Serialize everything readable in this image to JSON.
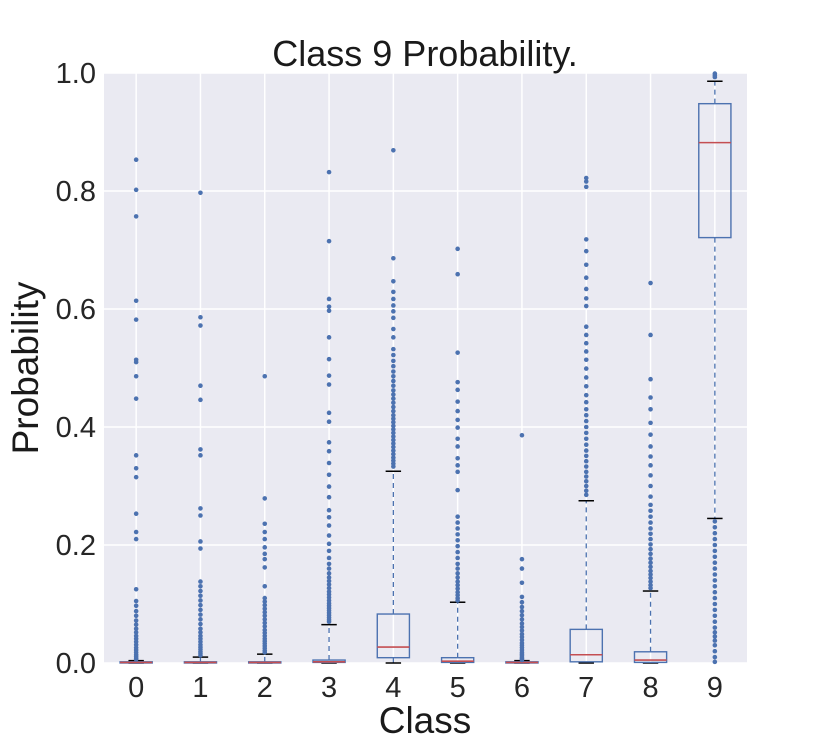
{
  "chart_data": {
    "type": "box",
    "title": "Class 9 Probability.",
    "xlabel": "Class",
    "ylabel": "Probability",
    "ylim": [
      0.0,
      1.0
    ],
    "yticks": [
      "0.0",
      "0.2",
      "0.4",
      "0.6",
      "0.8",
      "1.0"
    ],
    "categories": [
      "0",
      "1",
      "2",
      "3",
      "4",
      "5",
      "6",
      "7",
      "8",
      "9"
    ],
    "grid": true,
    "colors": {
      "background": "#eaeaf2",
      "grid": "#ffffff",
      "box": "#4c72b0",
      "median": "#c44e52",
      "whisker_cap": "#000000",
      "flier": "#4c72b0"
    },
    "boxes": [
      {
        "category": "0",
        "q1": 0.0,
        "median": 0.001,
        "q3": 0.002,
        "whisker_low": 0.0,
        "whisker_high": 0.004,
        "fliers": [
          0.853,
          0.802,
          0.757,
          0.614,
          0.582,
          0.514,
          0.51,
          0.486,
          0.448,
          0.352,
          0.33,
          0.315,
          0.253,
          0.222,
          0.21,
          0.125,
          0.105,
          0.097,
          0.088,
          0.08,
          0.072,
          0.065,
          0.058,
          0.052,
          0.046,
          0.041,
          0.036,
          0.031,
          0.026,
          0.022,
          0.018,
          0.014,
          0.011,
          0.008,
          0.006
        ]
      },
      {
        "category": "1",
        "q1": 0.0,
        "median": 0.001,
        "q3": 0.002,
        "whisker_low": 0.0,
        "whisker_high": 0.01,
        "fliers": [
          0.797,
          0.586,
          0.572,
          0.47,
          0.446,
          0.362,
          0.352,
          0.262,
          0.25,
          0.206,
          0.194,
          0.138,
          0.13,
          0.122,
          0.114,
          0.106,
          0.098,
          0.09,
          0.082,
          0.074,
          0.066,
          0.058,
          0.052,
          0.046,
          0.041,
          0.036,
          0.031,
          0.027,
          0.023,
          0.019,
          0.016,
          0.013
        ]
      },
      {
        "category": "2",
        "q1": 0.0,
        "median": 0.001,
        "q3": 0.002,
        "whisker_low": 0.0,
        "whisker_high": 0.015,
        "fliers": [
          0.486,
          0.279,
          0.236,
          0.222,
          0.21,
          0.196,
          0.185,
          0.176,
          0.162,
          0.13,
          0.11,
          0.104,
          0.098,
          0.092,
          0.086,
          0.08,
          0.074,
          0.068,
          0.062,
          0.056,
          0.051,
          0.046,
          0.041,
          0.037,
          0.033,
          0.029,
          0.025,
          0.021,
          0.018
        ]
      },
      {
        "category": "3",
        "q1": 0.001,
        "median": 0.002,
        "q3": 0.005,
        "whisker_low": 0.0,
        "whisker_high": 0.065,
        "fliers": [
          0.832,
          0.715,
          0.617,
          0.604,
          0.597,
          0.552,
          0.515,
          0.487,
          0.472,
          0.424,
          0.409,
          0.374,
          0.359,
          0.339,
          0.319,
          0.299,
          0.281,
          0.259,
          0.247,
          0.233,
          0.216,
          0.202,
          0.19,
          0.178,
          0.168,
          0.16,
          0.152,
          0.145,
          0.139,
          0.133,
          0.127,
          0.121,
          0.116,
          0.111,
          0.106,
          0.101,
          0.097,
          0.093,
          0.089,
          0.085,
          0.081,
          0.077,
          0.073,
          0.07
        ]
      },
      {
        "category": "4",
        "q1": 0.009,
        "median": 0.027,
        "q3": 0.083,
        "whisker_low": 0.0,
        "whisker_high": 0.325,
        "fliers": [
          0.869,
          0.686,
          0.647,
          0.629,
          0.617,
          0.606,
          0.596,
          0.585,
          0.566,
          0.552,
          0.532,
          0.522,
          0.512,
          0.503,
          0.494,
          0.486,
          0.478,
          0.47,
          0.462,
          0.455,
          0.448,
          0.441,
          0.434,
          0.427,
          0.42,
          0.414,
          0.408,
          0.402,
          0.396,
          0.39,
          0.384,
          0.378,
          0.372,
          0.366,
          0.36,
          0.354,
          0.348,
          0.343,
          0.338,
          0.333
        ]
      },
      {
        "category": "5",
        "q1": 0.001,
        "median": 0.003,
        "q3": 0.009,
        "whisker_low": 0.0,
        "whisker_high": 0.103,
        "fliers": [
          0.702,
          0.659,
          0.526,
          0.476,
          0.463,
          0.443,
          0.427,
          0.412,
          0.399,
          0.38,
          0.367,
          0.347,
          0.335,
          0.324,
          0.293,
          0.248,
          0.238,
          0.228,
          0.218,
          0.208,
          0.198,
          0.188,
          0.178,
          0.168,
          0.16,
          0.152,
          0.145,
          0.138,
          0.132,
          0.126,
          0.12,
          0.115,
          0.11,
          0.106
        ]
      },
      {
        "category": "6",
        "q1": 0.0,
        "median": 0.001,
        "q3": 0.002,
        "whisker_low": 0.0,
        "whisker_high": 0.004,
        "fliers": [
          0.386,
          0.176,
          0.16,
          0.136,
          0.112,
          0.103,
          0.095,
          0.088,
          0.081,
          0.074,
          0.067,
          0.061,
          0.055,
          0.049,
          0.044,
          0.039,
          0.034,
          0.03,
          0.026,
          0.022,
          0.018,
          0.015,
          0.012,
          0.009,
          0.007,
          0.005
        ]
      },
      {
        "category": "7",
        "q1": 0.002,
        "median": 0.014,
        "q3": 0.057,
        "whisker_low": 0.0,
        "whisker_high": 0.275,
        "fliers": [
          0.822,
          0.816,
          0.807,
          0.718,
          0.698,
          0.675,
          0.653,
          0.634,
          0.618,
          0.605,
          0.57,
          0.556,
          0.542,
          0.528,
          0.514,
          0.499,
          0.484,
          0.469,
          0.454,
          0.442,
          0.43,
          0.42,
          0.41,
          0.4,
          0.39,
          0.38,
          0.37,
          0.36,
          0.351,
          0.342,
          0.333,
          0.324,
          0.316,
          0.308,
          0.3,
          0.292,
          0.285
        ]
      },
      {
        "category": "8",
        "q1": 0.001,
        "median": 0.005,
        "q3": 0.019,
        "whisker_low": 0.0,
        "whisker_high": 0.122,
        "fliers": [
          0.644,
          0.556,
          0.481,
          0.45,
          0.43,
          0.407,
          0.387,
          0.367,
          0.35,
          0.335,
          0.318,
          0.3,
          0.282,
          0.268,
          0.258,
          0.248,
          0.238,
          0.228,
          0.219,
          0.21,
          0.201,
          0.193,
          0.185,
          0.177,
          0.17,
          0.163,
          0.156,
          0.15,
          0.144,
          0.138,
          0.132,
          0.127
        ]
      },
      {
        "category": "9",
        "q1": 0.721,
        "median": 0.882,
        "q3": 0.948,
        "whisker_low": 0.245,
        "whisker_high": 0.986,
        "fliers": [
          0.999,
          0.996,
          0.993,
          0.24,
          0.23,
          0.22,
          0.21,
          0.2,
          0.19,
          0.18,
          0.17,
          0.16,
          0.15,
          0.14,
          0.13,
          0.12,
          0.11,
          0.1,
          0.09,
          0.08,
          0.07,
          0.06,
          0.052,
          0.045,
          0.038,
          0.03,
          0.02,
          0.01,
          0.002
        ]
      }
    ]
  }
}
